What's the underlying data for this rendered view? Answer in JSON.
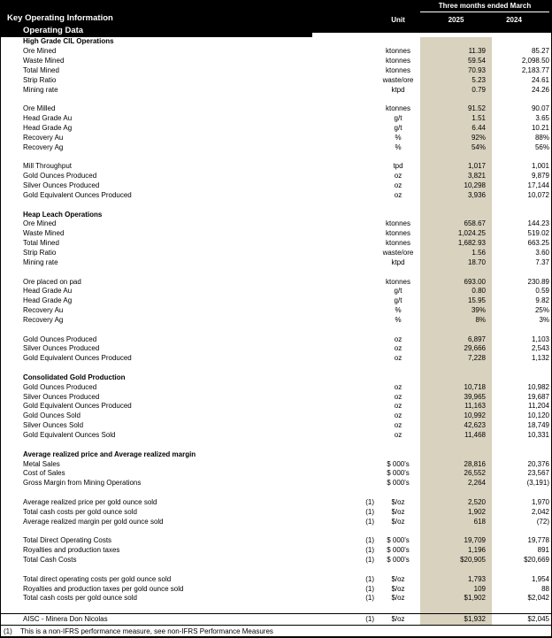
{
  "header": {
    "title": "Key Operating Information",
    "subtitle": "Operating Data",
    "period_label": "Three months ended March",
    "unit_label": "Unit",
    "col_2025": "2025",
    "col_2024": "2024"
  },
  "colors": {
    "header_bg": "#000000",
    "current_period_highlight": "#d8d2bf"
  },
  "rows": [
    {
      "t": "section",
      "label": "High Grade CIL Operations"
    },
    {
      "t": "item",
      "label": "Ore Mined",
      "unit": "ktonnes",
      "v25": "11.39",
      "v24": "85.27"
    },
    {
      "t": "item",
      "label": "Waste Mined",
      "unit": "ktonnes",
      "v25": "59.54",
      "v24": "2,098.50"
    },
    {
      "t": "item",
      "label": "Total Mined",
      "unit": "ktonnes",
      "v25": "70.93",
      "v24": "2,183.77"
    },
    {
      "t": "item",
      "label": "Strip Ratio",
      "unit": "waste/ore",
      "v25": "5.23",
      "v24": "24.61"
    },
    {
      "t": "item",
      "label": "Mining rate",
      "unit": "ktpd",
      "v25": "0.79",
      "v24": "24.26"
    },
    {
      "t": "blank"
    },
    {
      "t": "item",
      "label": "Ore Milled",
      "unit": "ktonnes",
      "v25": "91.52",
      "v24": "90.07"
    },
    {
      "t": "item",
      "label": "Head Grade Au",
      "unit": "g/t",
      "v25": "1.51",
      "v24": "3.65"
    },
    {
      "t": "item",
      "label": "Head Grade Ag",
      "unit": "g/t",
      "v25": "6.44",
      "v24": "10.21"
    },
    {
      "t": "item",
      "label": "Recovery Au",
      "unit": "%",
      "v25": "92%",
      "v24": "88%"
    },
    {
      "t": "item",
      "label": "Recovery Ag",
      "unit": "%",
      "v25": "54%",
      "v24": "56%"
    },
    {
      "t": "blank"
    },
    {
      "t": "item",
      "label": "Mill Throughput",
      "unit": "tpd",
      "v25": "1,017",
      "v24": "1,001"
    },
    {
      "t": "item",
      "label": "Gold Ounces Produced",
      "unit": "oz",
      "v25": "3,821",
      "v24": "9,879"
    },
    {
      "t": "item",
      "label": "Silver Ounces Produced",
      "unit": "oz",
      "v25": "10,298",
      "v24": "17,144"
    },
    {
      "t": "item",
      "label": "Gold Equivalent Ounces Produced",
      "unit": "oz",
      "v25": "3,936",
      "v24": "10,072"
    },
    {
      "t": "blank"
    },
    {
      "t": "section",
      "label": "Heap Leach Operations"
    },
    {
      "t": "item",
      "label": "Ore Mined",
      "unit": "ktonnes",
      "v25": "658.67",
      "v24": "144.23"
    },
    {
      "t": "item",
      "label": "Waste Mined",
      "unit": "ktonnes",
      "v25": "1,024.25",
      "v24": "519.02"
    },
    {
      "t": "item",
      "label": "Total Mined",
      "unit": "ktonnes",
      "v25": "1,682.93",
      "v24": "663.25"
    },
    {
      "t": "item",
      "label": "Strip Ratio",
      "unit": "waste/ore",
      "v25": "1.56",
      "v24": "3.60"
    },
    {
      "t": "item",
      "label": "Mining rate",
      "unit": "ktpd",
      "v25": "18.70",
      "v24": "7.37"
    },
    {
      "t": "blank"
    },
    {
      "t": "item",
      "label": "Ore placed on pad",
      "unit": "ktonnes",
      "v25": "693.00",
      "v24": "230.89"
    },
    {
      "t": "item",
      "label": "Head Grade Au",
      "unit": "g/t",
      "v25": "0.80",
      "v24": "0.59"
    },
    {
      "t": "item",
      "label": "Head Grade Ag",
      "unit": "g/t",
      "v25": "15.95",
      "v24": "9.82"
    },
    {
      "t": "item",
      "label": "Recovery Au",
      "unit": "%",
      "v25": "39%",
      "v24": "25%"
    },
    {
      "t": "item",
      "label": "Recovery Ag",
      "unit": "%",
      "v25": "8%",
      "v24": "3%"
    },
    {
      "t": "blank"
    },
    {
      "t": "item",
      "label": "Gold Ounces Produced",
      "unit": "oz",
      "v25": "6,897",
      "v24": "1,103"
    },
    {
      "t": "item",
      "label": "Silver Ounces Produced",
      "unit": "oz",
      "v25": "29,666",
      "v24": "2,543"
    },
    {
      "t": "item",
      "label": "Gold Equivalent Ounces Produced",
      "unit": "oz",
      "v25": "7,228",
      "v24": "1,132"
    },
    {
      "t": "blank"
    },
    {
      "t": "section",
      "label": "Consolidated Gold Production"
    },
    {
      "t": "item",
      "label": "Gold Ounces Produced",
      "unit": "oz",
      "v25": "10,718",
      "v24": "10,982"
    },
    {
      "t": "item",
      "label": "Silver Ounces Produced",
      "unit": "oz",
      "v25": "39,965",
      "v24": "19,687"
    },
    {
      "t": "item",
      "label": "Gold Equivalent Ounces Produced",
      "unit": "oz",
      "v25": "11,163",
      "v24": "11,204"
    },
    {
      "t": "item",
      "label": "Gold Ounces Sold",
      "unit": "oz",
      "v25": "10,992",
      "v24": "10,120"
    },
    {
      "t": "item",
      "label": "Silver Ounces Sold",
      "unit": "oz",
      "v25": "42,623",
      "v24": "18,749"
    },
    {
      "t": "item",
      "label": "Gold Equivalent Ounces Sold",
      "unit": "oz",
      "v25": "11,468",
      "v24": "10,331"
    },
    {
      "t": "blank"
    },
    {
      "t": "section",
      "label": "Average realized price and Average realized margin"
    },
    {
      "t": "item",
      "label": "Metal Sales",
      "unit": "$ 000's",
      "v25": "28,816",
      "v24": "20,376"
    },
    {
      "t": "item",
      "label": "Cost of Sales",
      "unit": "$ 000's",
      "v25": "26,552",
      "v24": "23,567"
    },
    {
      "t": "item",
      "label": "Gross Margin from Mining Operations",
      "unit": "$ 000's",
      "v25": "2,264",
      "v24": "(3,191)"
    },
    {
      "t": "blank"
    },
    {
      "t": "item",
      "label": "Average realized price per gold ounce sold",
      "note": "(1)",
      "unit": "$/oz",
      "v25": "2,520",
      "v24": "1,970"
    },
    {
      "t": "item",
      "label": "Total cash costs per gold ounce sold",
      "note": "(1)",
      "unit": "$/oz",
      "v25": "1,902",
      "v24": "2,042"
    },
    {
      "t": "item",
      "label": "Average realized margin per gold ounce sold",
      "note": "(1)",
      "unit": "$/oz",
      "v25": "618",
      "v24": "(72)"
    },
    {
      "t": "blank"
    },
    {
      "t": "item",
      "label": "Total Direct Operating Costs",
      "note": "(1)",
      "unit": "$ 000's",
      "v25": "19,709",
      "v24": "19,778"
    },
    {
      "t": "item",
      "label": "Royalties and production taxes",
      "note": "(1)",
      "unit": "$ 000's",
      "v25": "1,196",
      "v24": "891"
    },
    {
      "t": "item",
      "label": "Total Cash Costs",
      "note": "(1)",
      "unit": "$ 000's",
      "v25": "$20,905",
      "v24": "$20,669"
    },
    {
      "t": "blank"
    },
    {
      "t": "item",
      "label": "Total direct operating costs per gold ounce sold",
      "note": "(1)",
      "unit": "$/oz",
      "v25": "1,793",
      "v24": "1,954"
    },
    {
      "t": "item",
      "label": "Royalties and production taxes per gold ounce sold",
      "note": "(1)",
      "unit": "$/oz",
      "v25": "109",
      "v24": "88"
    },
    {
      "t": "item",
      "label": "Total cash costs per gold ounce sold",
      "note": "(1)",
      "unit": "$/oz",
      "v25": "$1,902",
      "v24": "$2,042"
    },
    {
      "t": "blank"
    }
  ],
  "aisc": {
    "label": "AISC - Minera Don Nicolas",
    "note": "(1)",
    "unit": "$/oz",
    "v25": "$1,932",
    "v24": "$2,045"
  },
  "footnote": {
    "marker": "(1)",
    "text": "This is a non-IFRS performance measure, see non-IFRS Performance Measures"
  }
}
